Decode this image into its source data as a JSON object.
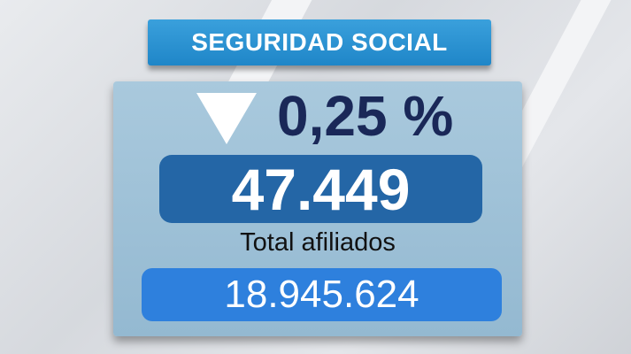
{
  "title": "SEGURIDAD SOCIAL",
  "change": {
    "direction_icon": "triangle-down-icon",
    "percent": "0,25 %",
    "value": "47.449"
  },
  "total": {
    "label": "Total afiliados",
    "value": "18.945.624"
  },
  "colors": {
    "title_bar": "#1f86c8",
    "panel": "#9ec2d8",
    "change_box": "#2466a6",
    "total_box": "#2e80dd",
    "percent_text": "#1a2858"
  }
}
